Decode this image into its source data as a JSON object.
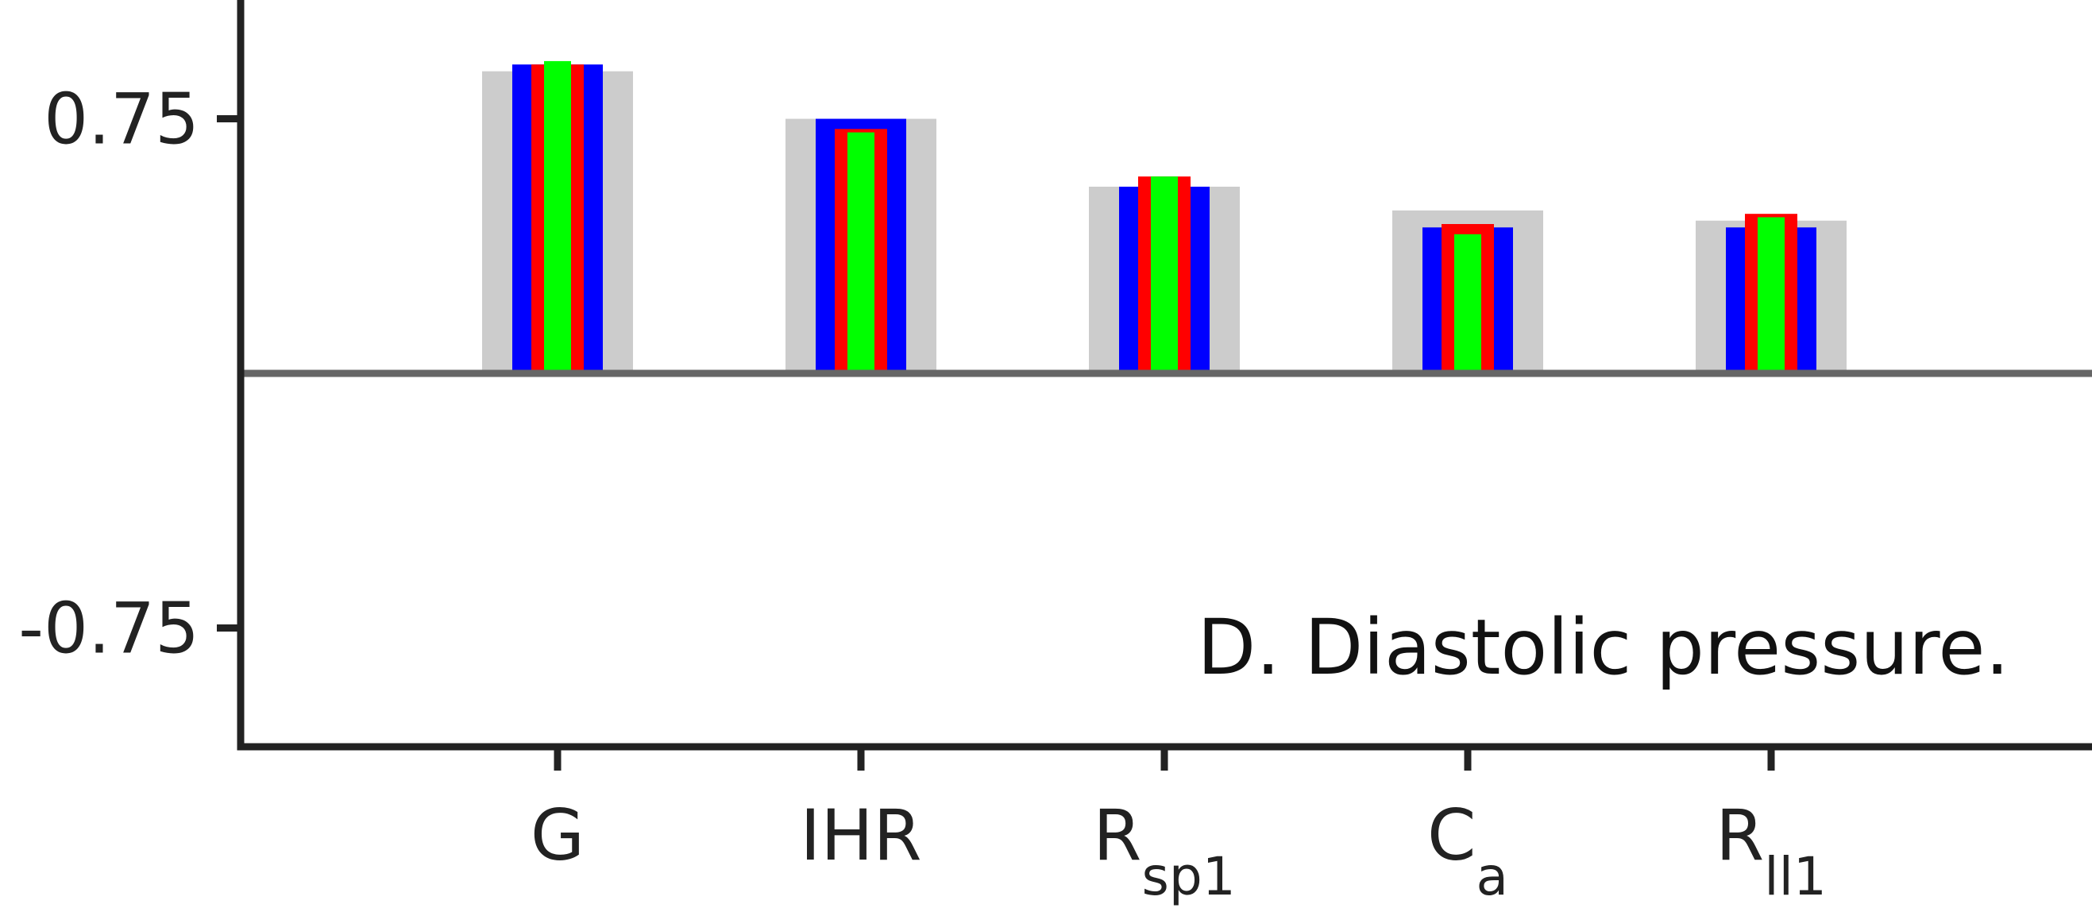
{
  "chart_data": {
    "type": "bar",
    "annotation": "D. Diastolic pressure.",
    "ylim": [
      -1.1,
      1.1
    ],
    "yticks": [
      {
        "value": 0.75,
        "label": "0.75"
      },
      {
        "value": -0.75,
        "label": "-0.75"
      }
    ],
    "categories": [
      {
        "label": "G",
        "main": "G",
        "sub": ""
      },
      {
        "label": "IHR",
        "main": "IHR",
        "sub": ""
      },
      {
        "label": "Rsp1",
        "main": "R",
        "sub": "sp1"
      },
      {
        "label": "Ca",
        "main": "C",
        "sub": "a"
      },
      {
        "label": "Rll1",
        "main": "R",
        "sub": "ll1"
      }
    ],
    "series": [
      {
        "color": "#cccccc",
        "values": [
          0.89,
          0.75,
          0.55,
          0.48,
          0.45
        ]
      },
      {
        "color": "#0000ff",
        "values": [
          0.91,
          0.75,
          0.55,
          0.43,
          0.43
        ]
      },
      {
        "color": "#ff0000",
        "values": [
          0.91,
          0.72,
          0.58,
          0.44,
          0.47
        ]
      },
      {
        "color": "#00ff00",
        "values": [
          0.92,
          0.71,
          0.58,
          0.41,
          0.46
        ]
      }
    ],
    "zero_line": true,
    "grid": false
  }
}
